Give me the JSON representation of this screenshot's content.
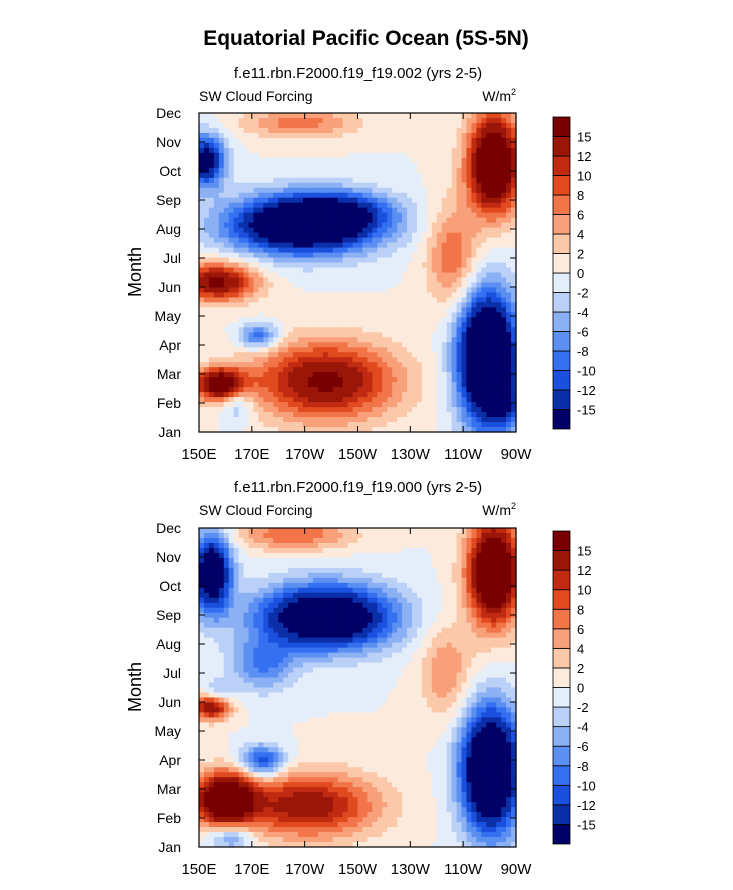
{
  "title": "Equatorial Pacific Ocean (5S-5N)",
  "chart_data": [
    {
      "type": "heatmap",
      "subtitle": "f.e11.rbn.F2000.f19_f19.002 (yrs 2-5)",
      "left_label": "SW Cloud Forcing",
      "units": "W/m",
      "units_superscript": "2",
      "ylabel": "Month",
      "xlabel": "",
      "x_ticks": [
        "150E",
        "170E",
        "170W",
        "150W",
        "130W",
        "110W",
        "90W"
      ],
      "y_ticks": [
        "Jan",
        "Feb",
        "Mar",
        "Apr",
        "May",
        "Jun",
        "Jul",
        "Aug",
        "Sep",
        "Oct",
        "Nov",
        "Dec"
      ],
      "colorbar_labels": [
        "-15",
        "-12",
        "-10",
        "-8",
        "-6",
        "-4",
        "-2",
        "0",
        "2",
        "4",
        "6",
        "8",
        "10",
        "12",
        "15"
      ],
      "features": [
        {
          "x": 0.33,
          "y": 0.35,
          "rx": 0.23,
          "ry": 0.09,
          "amp": -25
        },
        {
          "x": 0.45,
          "y": 0.31,
          "rx": 0.16,
          "ry": 0.06,
          "amp": -8
        },
        {
          "x": 0.02,
          "y": 0.15,
          "rx": 0.06,
          "ry": 0.08,
          "amp": -18
        },
        {
          "x": 0.91,
          "y": 0.77,
          "rx": 0.09,
          "ry": 0.2,
          "amp": -30
        },
        {
          "x": 0.97,
          "y": 0.92,
          "rx": 0.05,
          "ry": 0.06,
          "amp": -8
        },
        {
          "x": 0.19,
          "y": 0.7,
          "rx": 0.06,
          "ry": 0.04,
          "amp": -10
        },
        {
          "x": 0.12,
          "y": 0.9,
          "rx": 0.05,
          "ry": 0.07,
          "amp": -6
        },
        {
          "x": 0.93,
          "y": 0.16,
          "rx": 0.08,
          "ry": 0.15,
          "amp": 24
        },
        {
          "x": 0.32,
          "y": 0.03,
          "rx": 0.18,
          "ry": 0.05,
          "amp": 7
        },
        {
          "x": 0.4,
          "y": 0.84,
          "rx": 0.22,
          "ry": 0.12,
          "amp": 16
        },
        {
          "x": 0.07,
          "y": 0.85,
          "rx": 0.08,
          "ry": 0.05,
          "amp": 20
        },
        {
          "x": 0.06,
          "y": 0.53,
          "rx": 0.12,
          "ry": 0.06,
          "amp": 16
        },
        {
          "x": 0.8,
          "y": 0.45,
          "rx": 0.08,
          "ry": 0.16,
          "amp": 8
        }
      ]
    },
    {
      "type": "heatmap",
      "subtitle": "f.e11.rbn.F2000.f19_f19.000 (yrs 2-5)",
      "left_label": "SW Cloud Forcing",
      "units": "W/m",
      "units_superscript": "2",
      "ylabel": "Month",
      "xlabel": "",
      "x_ticks": [
        "150E",
        "170E",
        "170W",
        "150W",
        "130W",
        "110W",
        "90W"
      ],
      "y_ticks": [
        "Jan",
        "Feb",
        "Mar",
        "Apr",
        "May",
        "Jun",
        "Jul",
        "Aug",
        "Sep",
        "Oct",
        "Nov",
        "Dec"
      ],
      "colorbar_labels": [
        "-15",
        "-12",
        "-10",
        "-8",
        "-6",
        "-4",
        "-2",
        "0",
        "2",
        "4",
        "6",
        "8",
        "10",
        "12",
        "15"
      ],
      "features": [
        {
          "x": 0.4,
          "y": 0.28,
          "rx": 0.21,
          "ry": 0.1,
          "amp": -24
        },
        {
          "x": 0.2,
          "y": 0.43,
          "rx": 0.1,
          "ry": 0.08,
          "amp": -8
        },
        {
          "x": 0.04,
          "y": 0.14,
          "rx": 0.06,
          "ry": 0.12,
          "amp": -22
        },
        {
          "x": 0.2,
          "y": 0.73,
          "rx": 0.07,
          "ry": 0.05,
          "amp": -12
        },
        {
          "x": 0.92,
          "y": 0.76,
          "rx": 0.09,
          "ry": 0.19,
          "amp": -28
        },
        {
          "x": 0.06,
          "y": 0.52,
          "rx": 0.05,
          "ry": 0.04,
          "amp": -6
        },
        {
          "x": 0.1,
          "y": 0.97,
          "rx": 0.07,
          "ry": 0.04,
          "amp": -8
        },
        {
          "x": 0.93,
          "y": 0.14,
          "rx": 0.08,
          "ry": 0.16,
          "amp": 24
        },
        {
          "x": 0.3,
          "y": 0.02,
          "rx": 0.18,
          "ry": 0.05,
          "amp": 8
        },
        {
          "x": 0.08,
          "y": 0.85,
          "rx": 0.09,
          "ry": 0.08,
          "amp": 22
        },
        {
          "x": 0.34,
          "y": 0.87,
          "rx": 0.22,
          "ry": 0.1,
          "amp": 14
        },
        {
          "x": 0.04,
          "y": 0.56,
          "rx": 0.06,
          "ry": 0.04,
          "amp": 16
        },
        {
          "x": 0.78,
          "y": 0.45,
          "rx": 0.08,
          "ry": 0.15,
          "amp": 6
        }
      ]
    }
  ],
  "colors": {
    "levels": [
      "#000066",
      "#0a2fa8",
      "#1a50dd",
      "#3470f0",
      "#5c8ff2",
      "#8cb0f4",
      "#bad0f7",
      "#e4eefb",
      "#fcebdc",
      "#fcc8aa",
      "#f8a07a",
      "#f2754a",
      "#e04a1e",
      "#c02a10",
      "#9a1608",
      "#780000"
    ]
  }
}
